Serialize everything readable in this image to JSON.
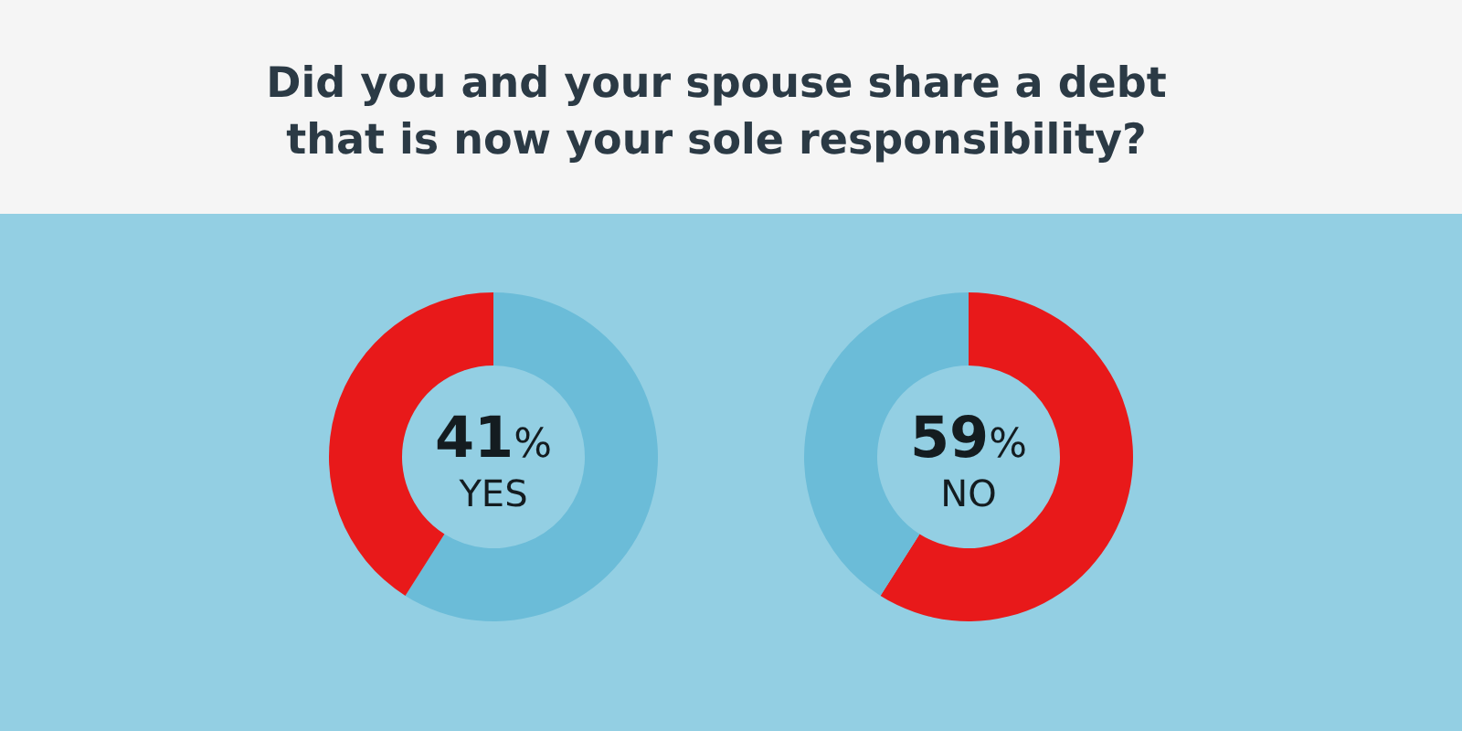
{
  "chart_data": [
    {
      "type": "donut",
      "title": "Did you and your spouse share a debt that is now your sole responsibility?",
      "categories": [
        null,
        "YES"
      ],
      "values": [
        59,
        41
      ],
      "colors": [
        "#6bbcd8",
        "#e8191a"
      ],
      "value_labels": [
        null,
        "41%"
      ]
    },
    {
      "type": "donut",
      "categories": [
        "NO",
        null
      ],
      "values": [
        59,
        41
      ],
      "colors": [
        "#e8191a",
        "#6bbcd8"
      ],
      "value_labels": [
        "59%",
        null
      ]
    }
  ]
}
